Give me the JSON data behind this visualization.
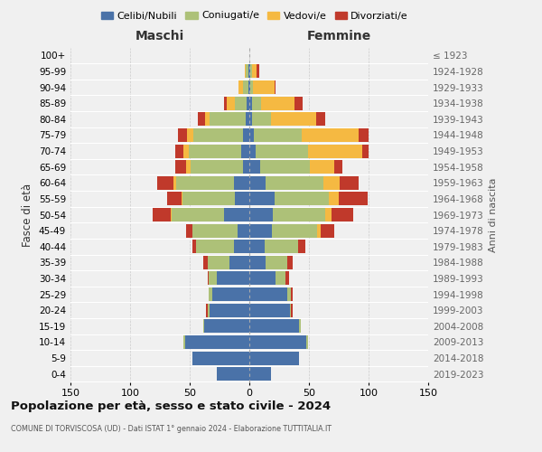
{
  "age_groups": [
    "100+",
    "95-99",
    "90-94",
    "85-89",
    "80-84",
    "75-79",
    "70-74",
    "65-69",
    "60-64",
    "55-59",
    "50-54",
    "45-49",
    "40-44",
    "35-39",
    "30-34",
    "25-29",
    "20-24",
    "15-19",
    "10-14",
    "5-9",
    "0-4"
  ],
  "birth_years": [
    "≤ 1923",
    "1924-1928",
    "1929-1933",
    "1934-1938",
    "1939-1943",
    "1944-1948",
    "1949-1953",
    "1954-1958",
    "1959-1963",
    "1964-1968",
    "1969-1973",
    "1974-1978",
    "1979-1983",
    "1984-1988",
    "1989-1993",
    "1994-1998",
    "1999-2003",
    "2004-2008",
    "2009-2013",
    "2014-2018",
    "2019-2023"
  ],
  "colors": {
    "celibi": "#4a72a8",
    "coniugati": "#adc178",
    "vedovi": "#f5b942",
    "divorziati": "#c0392b"
  },
  "maschi": {
    "celibi": [
      0,
      1,
      1,
      2,
      3,
      5,
      7,
      5,
      13,
      12,
      21,
      10,
      13,
      17,
      27,
      31,
      33,
      38,
      54,
      48,
      27
    ],
    "coniugati": [
      0,
      2,
      4,
      10,
      30,
      42,
      44,
      44,
      48,
      44,
      44,
      38,
      32,
      18,
      7,
      3,
      2,
      1,
      1,
      0,
      0
    ],
    "vedovi": [
      0,
      1,
      4,
      7,
      4,
      5,
      4,
      4,
      3,
      1,
      1,
      0,
      0,
      0,
      0,
      0,
      0,
      0,
      0,
      0,
      0
    ],
    "divorziati": [
      0,
      0,
      0,
      2,
      6,
      8,
      7,
      9,
      13,
      12,
      15,
      5,
      3,
      4,
      1,
      0,
      1,
      0,
      0,
      0,
      0
    ]
  },
  "femmine": {
    "celibi": [
      0,
      1,
      1,
      2,
      2,
      4,
      5,
      9,
      14,
      21,
      20,
      19,
      13,
      14,
      22,
      32,
      34,
      42,
      48,
      42,
      18
    ],
    "coniugati": [
      0,
      1,
      2,
      8,
      16,
      40,
      44,
      42,
      48,
      46,
      44,
      38,
      28,
      18,
      8,
      3,
      1,
      1,
      1,
      0,
      0
    ],
    "vedovi": [
      0,
      4,
      18,
      28,
      38,
      48,
      46,
      20,
      14,
      8,
      5,
      3,
      0,
      0,
      0,
      0,
      0,
      0,
      0,
      0,
      0
    ],
    "divorziati": [
      0,
      2,
      1,
      7,
      8,
      8,
      5,
      7,
      16,
      24,
      18,
      11,
      6,
      4,
      3,
      1,
      1,
      0,
      0,
      0,
      0
    ]
  },
  "title": "Popolazione per età, sesso e stato civile - 2024",
  "subtitle": "COMUNE DI TORVISCOSA (UD) - Dati ISTAT 1° gennaio 2024 - Elaborazione TUTTITALIA.IT",
  "xlabel_left": "Maschi",
  "xlabel_right": "Femmine",
  "ylabel_left": "Fasce di età",
  "ylabel_right": "Anni di nascita",
  "xlim": 150,
  "background_color": "#f0f0f0"
}
